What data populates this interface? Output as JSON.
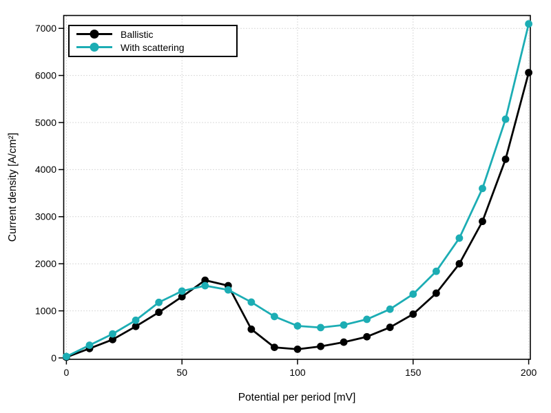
{
  "chart_data": {
    "type": "line",
    "title": "",
    "xlabel": "Potential per period [mV]",
    "ylabel": "Current density [A/cm²]",
    "x": [
      0,
      10,
      20,
      30,
      40,
      50,
      60,
      70,
      80,
      90,
      100,
      110,
      120,
      130,
      140,
      150,
      160,
      170,
      180,
      190,
      200
    ],
    "series": [
      {
        "name": "Ballistic",
        "color": "#000000",
        "marker": "circle",
        "values": [
          15,
          200,
          390,
          670,
          970,
          1300,
          1650,
          1535,
          610,
          225,
          185,
          245,
          335,
          450,
          650,
          930,
          1375,
          2000,
          2900,
          4220,
          6060
        ]
      },
      {
        "name": "With scattering",
        "color": "#1CADB4",
        "marker": "circle",
        "values": [
          30,
          270,
          510,
          800,
          1180,
          1420,
          1535,
          1445,
          1185,
          880,
          680,
          645,
          700,
          820,
          1035,
          1355,
          1840,
          2545,
          3600,
          5070,
          7095
        ]
      }
    ],
    "xticks": [
      0,
      50,
      100,
      150,
      200
    ],
    "yticks": [
      0,
      1000,
      2000,
      3000,
      4000,
      5000,
      6000,
      7000
    ],
    "xlim": [
      0,
      200
    ],
    "ylim": [
      0,
      7250
    ],
    "grid": true,
    "grid_style": "dotted",
    "legend_position": "top-left",
    "tick_label_color": "#000000",
    "grid_color": "#b3b3b3",
    "frame_color": "#000000"
  }
}
